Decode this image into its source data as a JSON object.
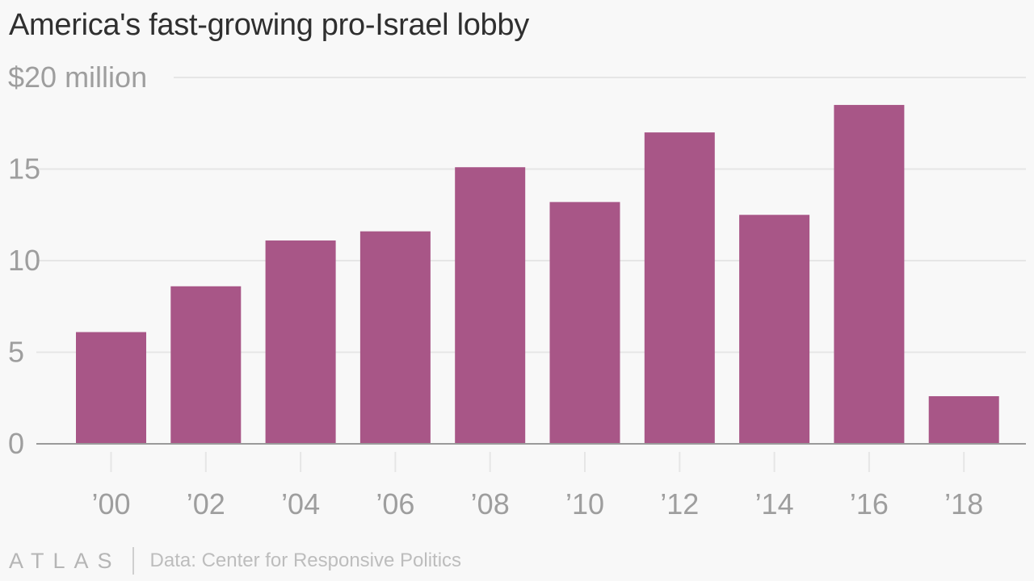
{
  "chart_data": {
    "type": "bar",
    "title": "America's fast-growing pro-Israel lobby",
    "categories": [
      "’00",
      "’02",
      "’04",
      "’06",
      "’08",
      "’10",
      "’12",
      "’14",
      "’16",
      "’18"
    ],
    "values": [
      6.1,
      8.6,
      11.1,
      11.6,
      15.1,
      13.2,
      17.0,
      12.5,
      18.5,
      2.6
    ],
    "ylim": [
      0,
      20
    ],
    "yticks": [
      0,
      5,
      10,
      15,
      20
    ],
    "ytick_labels": [
      "0",
      "5",
      "10",
      "15",
      "$20 million"
    ],
    "grid": true,
    "bar_color": "#a85687"
  },
  "footer": {
    "brand": "ATLAS",
    "source": "Data: Center for Responsive Politics"
  },
  "colors": {
    "background": "#f8f8f8",
    "grid": "#e6e6e6",
    "axis": "#9a9a9a",
    "tick_label": "#9e9e9e"
  }
}
